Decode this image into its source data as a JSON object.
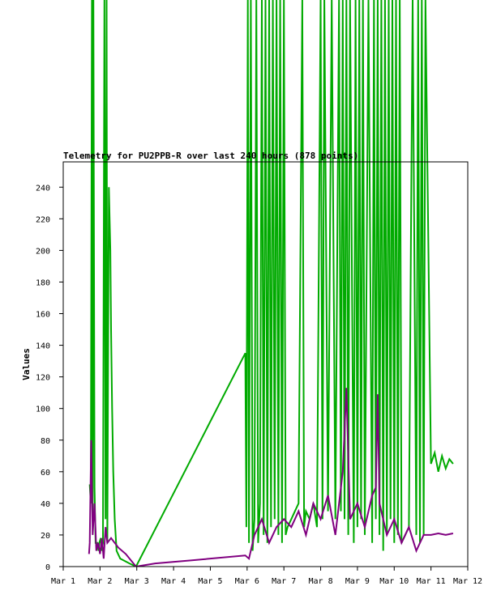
{
  "chart_data": {
    "type": "line",
    "title": "Telemetry for PU2PPB-R over last 240 hours (878 points)",
    "xlabel": "",
    "ylabel": "Values",
    "ylim": [
      0,
      256
    ],
    "xlim": [
      1,
      12
    ],
    "grid": false,
    "legend": "none",
    "y_ticks": [
      0,
      20,
      40,
      60,
      80,
      100,
      120,
      140,
      160,
      180,
      200,
      220,
      240
    ],
    "x_ticks": [
      {
        "x": 1,
        "label": "Mar 1"
      },
      {
        "x": 2,
        "label": "Mar 2"
      },
      {
        "x": 3,
        "label": "Mar 3"
      },
      {
        "x": 4,
        "label": "Mar 4"
      },
      {
        "x": 5,
        "label": "Mar 5"
      },
      {
        "x": 6,
        "label": "Mar 6"
      },
      {
        "x": 7,
        "label": "Mar 7"
      },
      {
        "x": 8,
        "label": "Mar 8"
      },
      {
        "x": 9,
        "label": "Mar 9"
      },
      {
        "x": 10,
        "label": "Mar 10"
      },
      {
        "x": 11,
        "label": "Mar 11"
      },
      {
        "x": 12,
        "label": "Mar 12"
      }
    ],
    "series": [
      {
        "color": "#00aa00",
        "x": [
          1.72,
          1.75,
          1.78,
          1.8,
          1.82,
          1.85,
          1.88,
          1.9,
          1.93,
          1.96,
          1.98,
          2.02,
          2.05,
          2.08,
          2.12,
          2.15,
          2.18,
          2.2,
          2.24,
          2.28,
          2.3,
          2.33,
          2.36,
          2.4,
          2.45,
          2.55,
          2.8,
          2.98,
          5.95,
          5.98,
          6.02,
          6.05,
          6.1,
          6.15,
          6.2,
          6.25,
          6.3,
          6.35,
          6.4,
          6.45,
          6.5,
          6.55,
          6.6,
          6.65,
          6.7,
          6.75,
          6.8,
          6.85,
          6.9,
          6.95,
          7.0,
          7.05,
          7.1,
          7.2,
          7.3,
          7.4,
          7.5,
          7.55,
          7.6,
          7.7,
          7.8,
          7.9,
          8.0,
          8.05,
          8.1,
          8.2,
          8.3,
          8.4,
          8.5,
          8.55,
          8.6,
          8.65,
          8.7,
          8.75,
          8.8,
          8.9,
          8.95,
          9.0,
          9.05,
          9.1,
          9.15,
          9.2,
          9.3,
          9.4,
          9.45,
          9.5,
          9.55,
          9.6,
          9.65,
          9.7,
          9.75,
          9.8,
          9.85,
          9.9,
          9.95,
          10.0,
          10.05,
          10.1,
          10.15,
          10.2,
          10.3,
          10.4,
          10.5,
          10.6,
          10.65,
          10.7,
          10.75,
          10.8,
          10.85,
          11.0,
          11.1,
          11.2,
          11.3,
          11.4,
          11.5,
          11.6
        ],
        "y": [
          52,
          40,
          256,
          30,
          256,
          50,
          15,
          15,
          15,
          10,
          15,
          18,
          10,
          15,
          256,
          30,
          256,
          15,
          240,
          200,
          150,
          100,
          60,
          30,
          10,
          5,
          2,
          0,
          135,
          25,
          256,
          15,
          256,
          10,
          30,
          256,
          15,
          40,
          256,
          20,
          256,
          15,
          256,
          25,
          256,
          30,
          256,
          20,
          256,
          15,
          256,
          20,
          25,
          30,
          35,
          40,
          256,
          25,
          35,
          30,
          40,
          25,
          256,
          30,
          256,
          35,
          256,
          30,
          256,
          35,
          256,
          30,
          256,
          20,
          256,
          15,
          256,
          25,
          256,
          30,
          256,
          20,
          256,
          15,
          256,
          30,
          256,
          20,
          256,
          10,
          256,
          20,
          256,
          30,
          256,
          15,
          256,
          20,
          256,
          15,
          20,
          25,
          256,
          20,
          256,
          15,
          256,
          20,
          256,
          65,
          72,
          60,
          70,
          62,
          68,
          65
        ]
      },
      {
        "color": "#800080",
        "x": [
          1.7,
          1.72,
          1.76,
          1.8,
          1.85,
          1.9,
          1.95,
          2.0,
          2.05,
          2.1,
          2.15,
          2.2,
          2.3,
          2.5,
          2.7,
          2.98,
          3.5,
          4.5,
          5.95,
          6.05,
          6.2,
          6.4,
          6.6,
          6.8,
          7.0,
          7.2,
          7.4,
          7.6,
          7.8,
          8.0,
          8.2,
          8.4,
          8.6,
          8.7,
          8.8,
          9.0,
          9.2,
          9.4,
          9.5,
          9.55,
          9.6,
          9.8,
          10.0,
          10.2,
          10.4,
          10.6,
          10.8,
          11.0,
          11.2,
          11.4,
          11.6
        ],
        "y": [
          8,
          15,
          80,
          20,
          40,
          10,
          15,
          8,
          18,
          5,
          25,
          15,
          18,
          12,
          8,
          0,
          2,
          4,
          7,
          5,
          20,
          30,
          15,
          25,
          30,
          25,
          35,
          20,
          40,
          30,
          45,
          20,
          60,
          113,
          30,
          40,
          25,
          45,
          50,
          109,
          40,
          20,
          30,
          15,
          25,
          10,
          20,
          20,
          21,
          20,
          21
        ]
      }
    ]
  }
}
